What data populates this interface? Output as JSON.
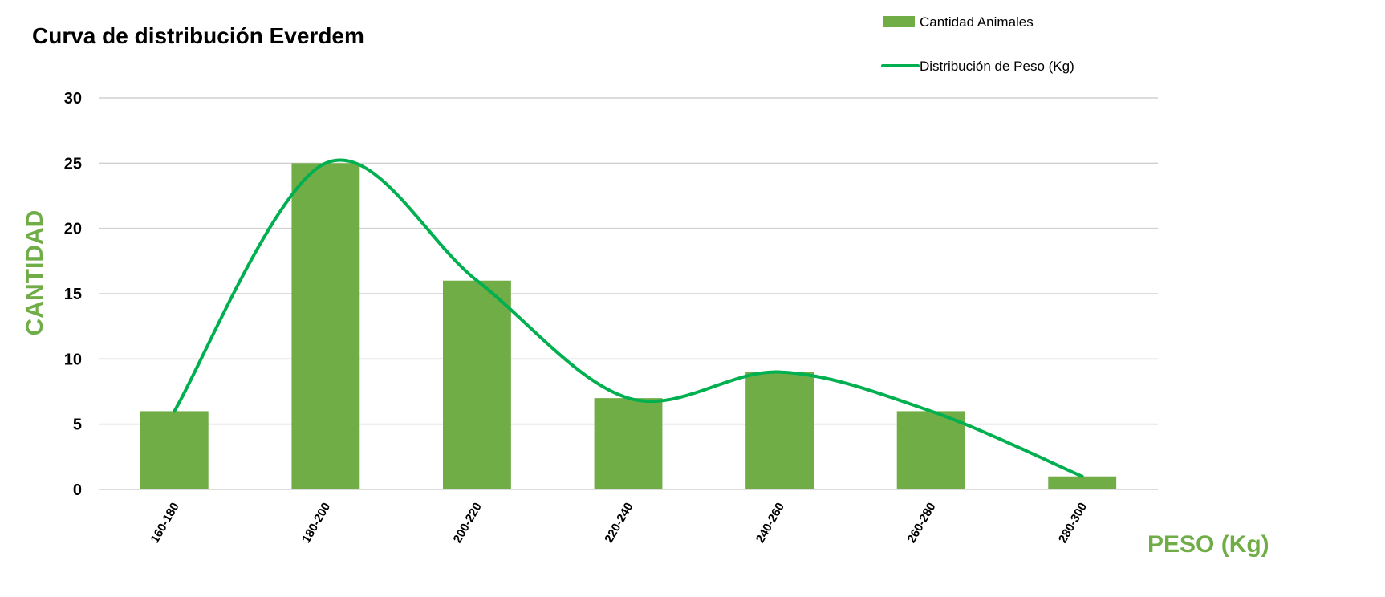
{
  "chart_data": {
    "type": "bar",
    "title": "Curva de distribución Everdem",
    "xlabel": "PESO (Kg)",
    "ylabel": "CANTIDAD",
    "categories": [
      "160-180",
      "180-200",
      "200-220",
      "220-240",
      "240-260",
      "260-280",
      "280-300"
    ],
    "series": [
      {
        "name": "Cantidad Animales",
        "kind": "bar",
        "values": [
          6,
          25,
          16,
          7,
          9,
          6,
          1
        ]
      },
      {
        "name": "Distribución de Peso (Kg)",
        "kind": "line",
        "smooth": true,
        "values": [
          6,
          25,
          16,
          7,
          9,
          6,
          1
        ]
      }
    ],
    "ylim": [
      0,
      30
    ],
    "yticks": [
      0,
      5,
      10,
      15,
      20,
      25,
      30
    ],
    "grid": true,
    "legend": "top-right"
  },
  "colors": {
    "bar": "#70ad47",
    "line": "#00b050",
    "axis_title": "#70ad47"
  }
}
